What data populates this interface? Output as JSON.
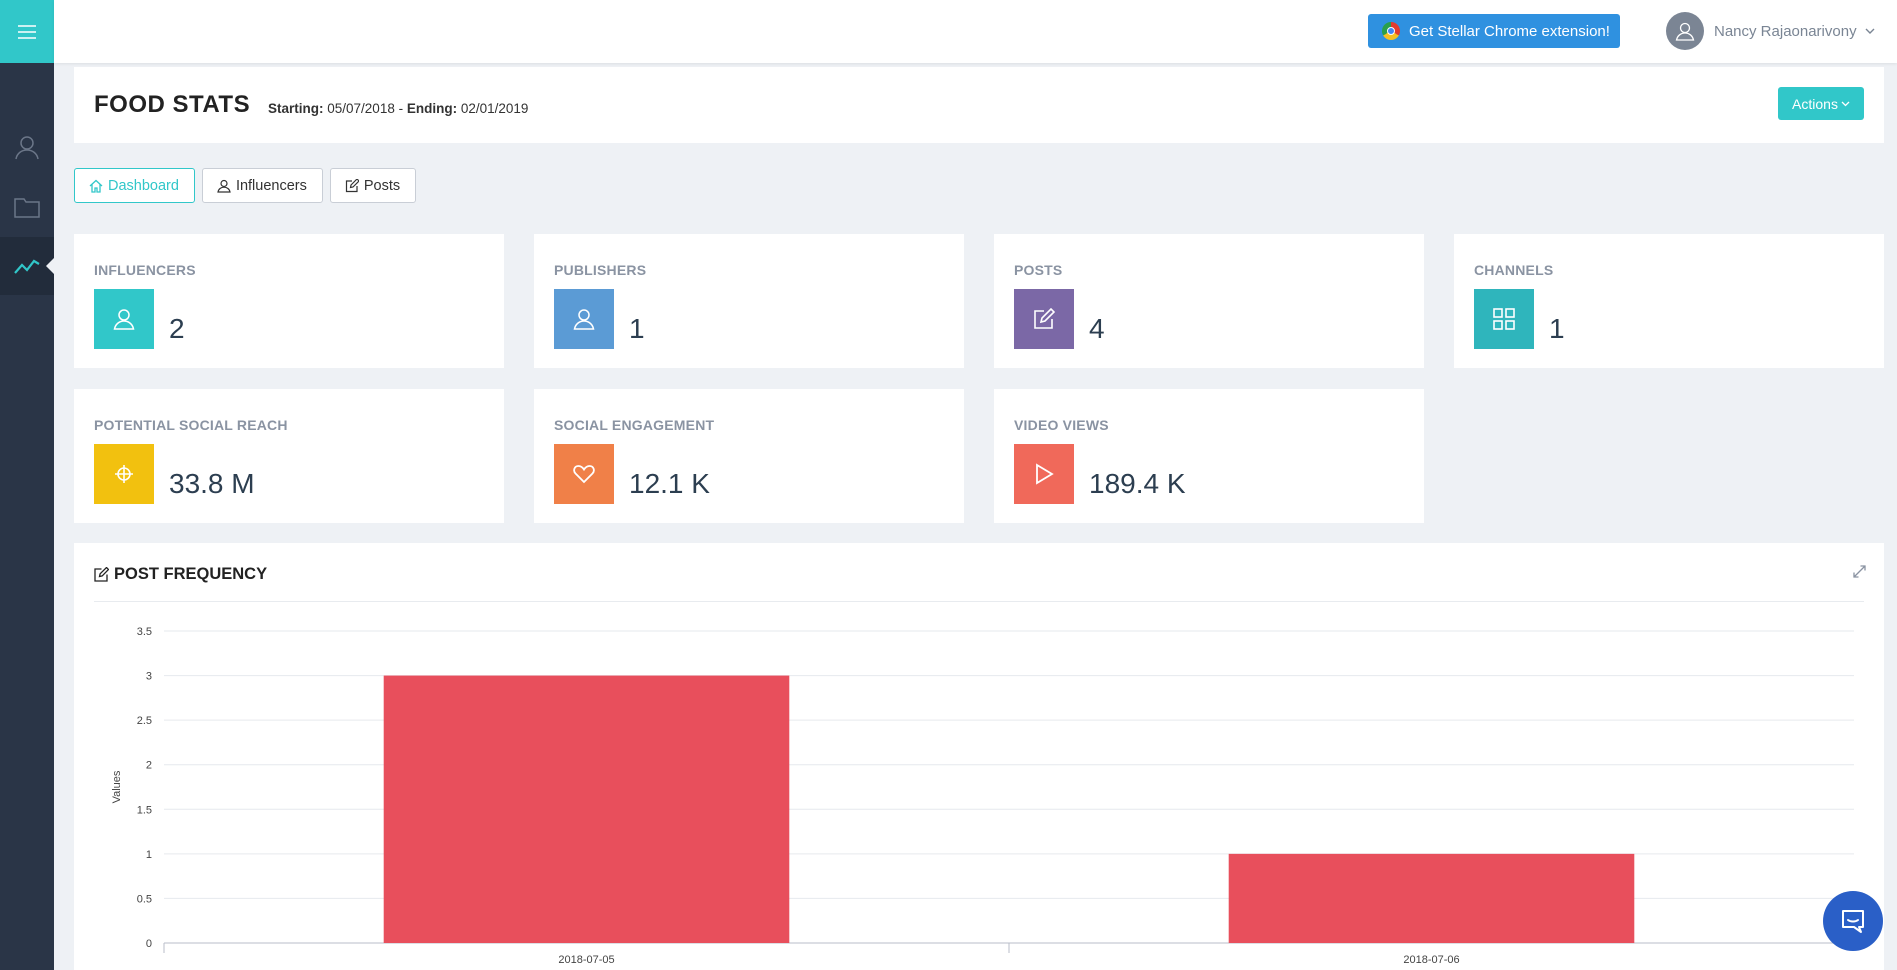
{
  "sidebar": {
    "items": [
      {
        "name": "influencers",
        "icon": "user-icon"
      },
      {
        "name": "folders",
        "icon": "folder-icon"
      },
      {
        "name": "stats",
        "icon": "trend-line-icon",
        "active": true
      }
    ]
  },
  "topbar": {
    "extension_label": "Get Stellar Chrome extension!",
    "user_name": "Nancy Rajaonarivony"
  },
  "header": {
    "title": "FOOD STATS",
    "starting_label": "Starting:",
    "starting_date": "05/07/2018",
    "separator": " - ",
    "ending_label": "Ending:",
    "ending_date": "02/01/2019",
    "actions_label": "Actions"
  },
  "tabs": [
    {
      "label": "Dashboard",
      "icon": "home-icon",
      "active": true
    },
    {
      "label": "Influencers",
      "icon": "user-icon"
    },
    {
      "label": "Posts",
      "icon": "edit-icon"
    }
  ],
  "stats": [
    {
      "label": "INFLUENCERS",
      "value": "2",
      "color": "#31c7c9",
      "icon": "user-icon"
    },
    {
      "label": "PUBLISHERS",
      "value": "1",
      "color": "#5b9bd5",
      "icon": "user-icon"
    },
    {
      "label": "POSTS",
      "value": "4",
      "color": "#7b68a6",
      "icon": "edit-icon"
    },
    {
      "label": "CHANNELS",
      "value": "1",
      "color": "#2fb5bc",
      "icon": "grid-icon"
    },
    {
      "label": "POTENTIAL SOCIAL REACH",
      "value": "33.8 M",
      "color": "#f2c10f",
      "icon": "crosshair-icon"
    },
    {
      "label": "SOCIAL ENGAGEMENT",
      "value": "12.1 K",
      "color": "#f08048",
      "icon": "heart-icon"
    },
    {
      "label": "VIDEO VIEWS",
      "value": "189.4 K",
      "color": "#f0695a",
      "icon": "play-icon"
    }
  ],
  "panel": {
    "title": "POST FREQUENCY"
  },
  "chart_data": {
    "type": "bar",
    "categories": [
      "2018-07-05",
      "2018-07-06"
    ],
    "values": [
      3,
      1
    ],
    "ylabel": "Values",
    "xlabel": "",
    "ylim": [
      0,
      3.5
    ],
    "yticks": [
      0,
      0.5,
      1,
      1.5,
      2,
      2.5,
      3,
      3.5
    ],
    "bar_color": "#e84f5c",
    "grid": true
  }
}
